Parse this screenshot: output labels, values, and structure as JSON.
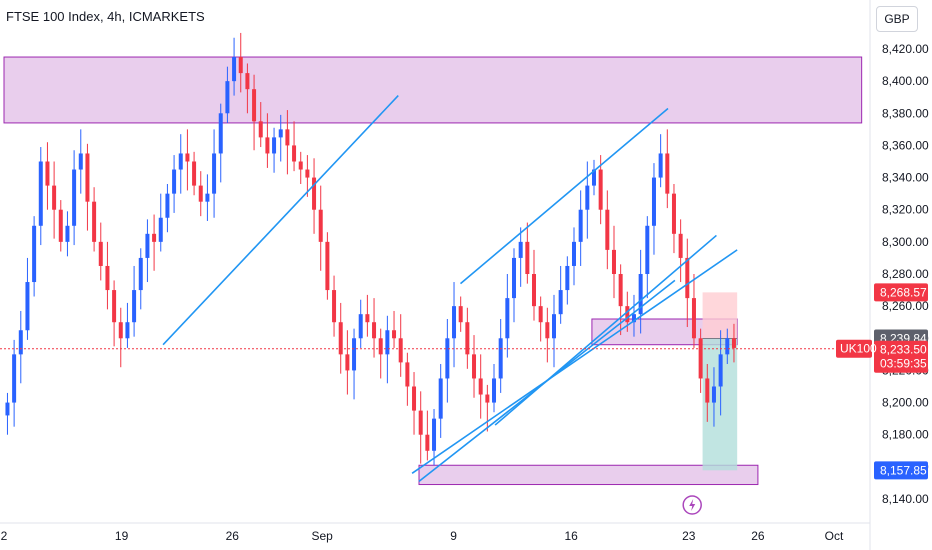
{
  "header": {
    "title": "FTSE 100 Index, 4h, ICMARKETS"
  },
  "price_axis": {
    "currency": "GBP"
  },
  "chart_data": {
    "type": "candlestick",
    "title": "FTSE 100 Index, 4h, ICMARKETS",
    "ylim": [
      8130,
      8430
    ],
    "y_ticks": [
      8140,
      8160,
      8180,
      8200,
      8220,
      8240,
      8260,
      8280,
      8300,
      8320,
      8340,
      8360,
      8380,
      8400,
      8420
    ],
    "x_ticks": [
      {
        "label": "2",
        "pos": 0
      },
      {
        "label": "19",
        "pos": 17
      },
      {
        "label": "26",
        "pos": 33
      },
      {
        "label": "Sep",
        "pos": 46
      },
      {
        "label": "9",
        "pos": 65
      },
      {
        "label": "16",
        "pos": 82
      },
      {
        "label": "23",
        "pos": 99
      },
      {
        "label": "26",
        "pos": 109
      },
      {
        "label": "Oct",
        "pos": 120
      }
    ],
    "xlim": [
      0,
      124
    ],
    "candle_path": [
      [
        8200,
        "u"
      ],
      [
        8230,
        "u"
      ],
      [
        8245,
        "u"
      ],
      [
        8275,
        "u"
      ],
      [
        8310,
        "u"
      ],
      [
        8350,
        "u"
      ],
      [
        8335,
        "d"
      ],
      [
        8320,
        "d"
      ],
      [
        8300,
        "d"
      ],
      [
        8310,
        "u"
      ],
      [
        8345,
        "u"
      ],
      [
        8355,
        "u"
      ],
      [
        8325,
        "d"
      ],
      [
        8300,
        "d"
      ],
      [
        8285,
        "d"
      ],
      [
        8270,
        "d"
      ],
      [
        8250,
        "d"
      ],
      [
        8240,
        "d"
      ],
      [
        8250,
        "u"
      ],
      [
        8270,
        "u"
      ],
      [
        8290,
        "u"
      ],
      [
        8305,
        "u"
      ],
      [
        8300,
        "d"
      ],
      [
        8315,
        "u"
      ],
      [
        8330,
        "u"
      ],
      [
        8345,
        "u"
      ],
      [
        8355,
        "u"
      ],
      [
        8350,
        "d"
      ],
      [
        8335,
        "d"
      ],
      [
        8325,
        "d"
      ],
      [
        8330,
        "u"
      ],
      [
        8355,
        "u"
      ],
      [
        8380,
        "u"
      ],
      [
        8400,
        "u"
      ],
      [
        8415,
        "u"
      ],
      [
        8405,
        "d"
      ],
      [
        8395,
        "d"
      ],
      [
        8375,
        "d"
      ],
      [
        8365,
        "d"
      ],
      [
        8355,
        "d"
      ],
      [
        8365,
        "u"
      ],
      [
        8370,
        "u"
      ],
      [
        8360,
        "d"
      ],
      [
        8350,
        "d"
      ],
      [
        8345,
        "d"
      ],
      [
        8340,
        "d"
      ],
      [
        8320,
        "d"
      ],
      [
        8300,
        "d"
      ],
      [
        8270,
        "d"
      ],
      [
        8250,
        "d"
      ],
      [
        8230,
        "d"
      ],
      [
        8220,
        "d"
      ],
      [
        8240,
        "u"
      ],
      [
        8255,
        "u"
      ],
      [
        8250,
        "d"
      ],
      [
        8240,
        "d"
      ],
      [
        8230,
        "d"
      ],
      [
        8245,
        "u"
      ],
      [
        8240,
        "d"
      ],
      [
        8225,
        "d"
      ],
      [
        8210,
        "d"
      ],
      [
        8195,
        "d"
      ],
      [
        8180,
        "d"
      ],
      [
        8170,
        "d"
      ],
      [
        8190,
        "u"
      ],
      [
        8215,
        "u"
      ],
      [
        8240,
        "u"
      ],
      [
        8260,
        "u"
      ],
      [
        8250,
        "d"
      ],
      [
        8230,
        "d"
      ],
      [
        8215,
        "d"
      ],
      [
        8205,
        "d"
      ],
      [
        8200,
        "d"
      ],
      [
        8215,
        "u"
      ],
      [
        8240,
        "u"
      ],
      [
        8265,
        "u"
      ],
      [
        8290,
        "u"
      ],
      [
        8300,
        "u"
      ],
      [
        8280,
        "d"
      ],
      [
        8260,
        "d"
      ],
      [
        8250,
        "d"
      ],
      [
        8240,
        "d"
      ],
      [
        8255,
        "u"
      ],
      [
        8270,
        "u"
      ],
      [
        8285,
        "u"
      ],
      [
        8300,
        "u"
      ],
      [
        8320,
        "u"
      ],
      [
        8335,
        "u"
      ],
      [
        8345,
        "u"
      ],
      [
        8320,
        "d"
      ],
      [
        8295,
        "d"
      ],
      [
        8280,
        "d"
      ],
      [
        8260,
        "d"
      ],
      [
        8250,
        "d"
      ],
      [
        8255,
        "u"
      ],
      [
        8280,
        "u"
      ],
      [
        8310,
        "u"
      ],
      [
        8340,
        "u"
      ],
      [
        8355,
        "u"
      ],
      [
        8330,
        "d"
      ],
      [
        8305,
        "d"
      ],
      [
        8290,
        "d"
      ],
      [
        8265,
        "d"
      ],
      [
        8240,
        "d"
      ],
      [
        8215,
        "d"
      ],
      [
        8200,
        "d"
      ],
      [
        8210,
        "u"
      ],
      [
        8230,
        "u"
      ],
      [
        8240,
        "u"
      ],
      [
        8234,
        "d"
      ]
    ],
    "zones": [
      {
        "y_top": 8415,
        "y_bottom": 8374,
        "x_start": 0,
        "x_end": 124
      },
      {
        "y_top": 8252,
        "y_bottom": 8236,
        "x_start": 85,
        "x_end": 106
      },
      {
        "y_top": 8161,
        "y_bottom": 8149,
        "x_start": 60,
        "x_end": 109
      }
    ],
    "trend_lines": [
      {
        "x1": 23,
        "y1": 8236,
        "x2": 57,
        "y2": 8391
      },
      {
        "x1": 59,
        "y1": 8156,
        "x2": 106,
        "y2": 8295
      },
      {
        "x1": 66,
        "y1": 8274,
        "x2": 96,
        "y2": 8383
      },
      {
        "x1": 71,
        "y1": 8186,
        "x2": 103,
        "y2": 8304
      },
      {
        "x1": 60,
        "y1": 8151,
        "x2": 97,
        "y2": 8276
      }
    ],
    "position": {
      "entry": 8239.84,
      "stop": 8268.57,
      "target": 8157.85,
      "x_start": 101,
      "x_end": 106
    },
    "current_price": 8233.5,
    "labels": {
      "stop_price": "8,268.57",
      "entry_price": "8,239.84",
      "symbol": "UK100",
      "last_price": "8,233.50",
      "countdown": "03:59:35",
      "target_price": "8,157.85"
    },
    "colors": {
      "up": "#2962ff",
      "down": "#f23645",
      "zone_fill": "#e1bee7",
      "zone_stroke": "#9c27b0",
      "trend": "#2196f3",
      "profit": "#b2dfdb",
      "loss": "#ffcdd2",
      "price_tag": "#f23645",
      "neutral_tag": "#5d606b",
      "target_tag": "#2962ff",
      "flash": "#ab47bc"
    },
    "flash_icon": "lightning-icon"
  }
}
